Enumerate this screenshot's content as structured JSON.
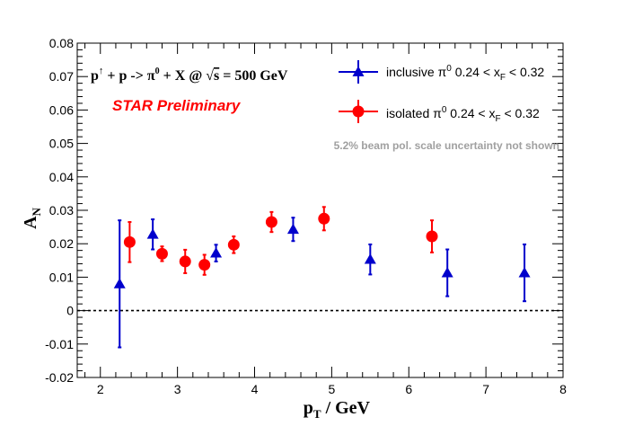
{
  "chart_data": {
    "type": "scatter",
    "title": "",
    "xlabel_main": "p",
    "xlabel_sub": "T",
    "xlabel_rest": " / GeV",
    "ylabel_main": "A",
    "ylabel_sub": "N",
    "xlim": [
      1.7,
      8.0
    ],
    "ylim": [
      -0.02,
      0.08
    ],
    "xticks": [
      2,
      3,
      4,
      5,
      6,
      7,
      8
    ],
    "yticks": [
      -0.02,
      -0.01,
      0,
      0.01,
      0.02,
      0.03,
      0.04,
      0.05,
      0.06,
      0.07,
      0.08
    ],
    "grid": false,
    "zero_line": true,
    "legend_position": "top-right",
    "series": [
      {
        "name": "inclusive π⁰ 0.24 < x_F < 0.32",
        "legend_parts": [
          "inclusive π",
          "0",
          " 0.24 < x",
          "F",
          " < 0.32"
        ],
        "marker": "triangle",
        "color": "#0000cc",
        "points": [
          {
            "x": 2.25,
            "y": 0.008,
            "err": 0.019
          },
          {
            "x": 2.68,
            "y": 0.0228,
            "err": 0.0045
          },
          {
            "x": 3.5,
            "y": 0.0172,
            "err": 0.0025
          },
          {
            "x": 4.5,
            "y": 0.0243,
            "err": 0.0035
          },
          {
            "x": 5.5,
            "y": 0.0153,
            "err": 0.0045
          },
          {
            "x": 6.5,
            "y": 0.0113,
            "err": 0.007
          },
          {
            "x": 7.5,
            "y": 0.0113,
            "err": 0.0085
          }
        ]
      },
      {
        "name": "isolated π⁰ 0.24 < x_F < 0.32",
        "legend_parts": [
          "isolated π",
          "0",
          " 0.24 < x",
          "F",
          " < 0.32"
        ],
        "marker": "circle",
        "color": "#ff0000",
        "points": [
          {
            "x": 2.38,
            "y": 0.0205,
            "err": 0.006
          },
          {
            "x": 2.8,
            "y": 0.017,
            "err": 0.0022
          },
          {
            "x": 3.1,
            "y": 0.0147,
            "err": 0.0035
          },
          {
            "x": 3.35,
            "y": 0.0137,
            "err": 0.003
          },
          {
            "x": 3.73,
            "y": 0.0197,
            "err": 0.0025
          },
          {
            "x": 4.22,
            "y": 0.0265,
            "err": 0.003
          },
          {
            "x": 4.9,
            "y": 0.0275,
            "err": 0.0035
          },
          {
            "x": 6.3,
            "y": 0.0222,
            "err": 0.0048
          }
        ]
      }
    ],
    "annotations": {
      "reaction_a": "p",
      "reaction_sup": "↑",
      "reaction_b": " + p ->  π",
      "reaction_sup2": "0",
      "reaction_c": " + X @  ",
      "reaction_sqrt": "√",
      "reaction_s": "s",
      "reaction_d": " = 500 GeV",
      "preliminary": "STAR Preliminary",
      "note": "5.2% beam pol. scale uncertainty not shown"
    }
  }
}
